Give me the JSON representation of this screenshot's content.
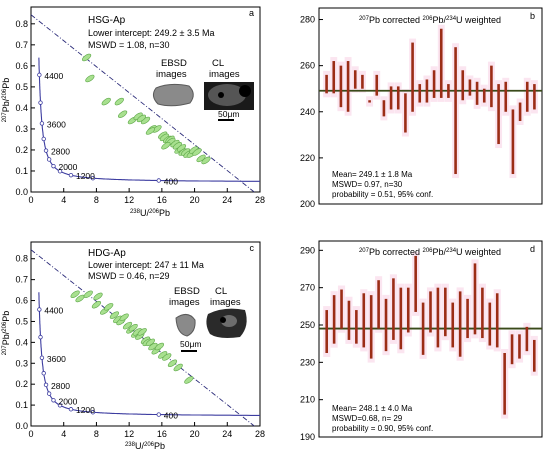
{
  "chart_data": [
    {
      "type": "scatter",
      "panel_label": "a",
      "title": "HSG-Ap",
      "annotations": [
        "Lower intercept: 249.2 ± 3.5 Ma",
        "MSWD = 1.08, n=30"
      ],
      "inset_labels": [
        "EBSD images",
        "CL images"
      ],
      "scale_bar": "50μm",
      "xlabel_mass": "238",
      "xlabel_num": "U/",
      "xlabel_mass2": "206",
      "xlabel_end": "Pb",
      "ylabel_mass": "207",
      "ylabel_mid": "Pb/",
      "ylabel_mass2": "206",
      "ylabel_end": "Pb",
      "xlim": [
        0,
        28
      ],
      "ylim": [
        0,
        0.88
      ],
      "xticks": [
        "0",
        "4",
        "8",
        "12",
        "16",
        "20",
        "24",
        "28"
      ],
      "yticks": [
        "0.0",
        "0.1",
        "0.2",
        "0.3",
        "0.4",
        "0.5",
        "0.6",
        "0.7",
        "0.8"
      ],
      "concordia_labels": [
        "4400",
        "3600",
        "2800",
        "2000",
        "1200",
        "400"
      ],
      "discordia": {
        "from": [
          0,
          0.843
        ],
        "to": [
          27.3,
          0.0
        ]
      },
      "points_x": [
        6.8,
        7.2,
        9.2,
        10.8,
        11.2,
        12.4,
        13.1,
        14.0,
        14.8,
        15.4,
        16.1,
        16.3,
        16.7,
        17.0,
        17.1,
        17.6,
        17.9,
        18.1,
        18.4,
        18.6,
        18.9,
        19.2,
        19.6,
        19.9,
        20.3,
        20.8,
        21.4,
        16.5,
        14.6,
        13.5
      ],
      "points_y": [
        0.64,
        0.54,
        0.43,
        0.43,
        0.37,
        0.34,
        0.36,
        0.34,
        0.3,
        0.3,
        0.27,
        0.26,
        0.25,
        0.25,
        0.24,
        0.23,
        0.22,
        0.2,
        0.21,
        0.19,
        0.19,
        0.18,
        0.18,
        0.2,
        0.19,
        0.16,
        0.15,
        0.22,
        0.29,
        0.35
      ]
    },
    {
      "type": "bar",
      "panel_label": "b",
      "title_mass1": "207",
      "title_a": "Pb corrected ",
      "title_mass2": "206",
      "title_b": "Pb/",
      "title_mass3": "234",
      "title_c": "U weighted",
      "ylim": [
        200,
        285
      ],
      "yticks": [
        "200",
        "220",
        "240",
        "260",
        "280"
      ],
      "mean_line": 249.1,
      "stats": [
        "Mean= 249.1 ± 1.8 Ma",
        "MSWD= 0.97, n=30",
        "probability = 0.51, 95% conf."
      ],
      "series_low": [
        248,
        248,
        242,
        240,
        250,
        250,
        244,
        247,
        238,
        241,
        241,
        231,
        240,
        244,
        244,
        246,
        246,
        246,
        213,
        245,
        247,
        243,
        244,
        242,
        226,
        240,
        213,
        236,
        240,
        241
      ],
      "series_high": [
        256,
        262,
        260,
        262,
        258,
        256,
        245,
        256,
        245,
        251,
        251,
        248,
        270,
        252,
        254,
        258,
        276,
        252,
        268,
        258,
        254,
        253,
        250,
        260,
        252,
        253,
        241,
        244,
        253,
        252
      ]
    },
    {
      "type": "scatter",
      "panel_label": "c",
      "title": "HDG-Ap",
      "annotations": [
        "Lower intercept: 247 ± 11 Ma",
        "MSWD = 0.46, n=29"
      ],
      "inset_labels": [
        "EBSD images",
        "CL images"
      ],
      "scale_bar": "50μm",
      "xlabel_mass": "238",
      "xlabel_num": "U/",
      "xlabel_mass2": "206",
      "xlabel_end": "Pb",
      "ylabel_mass": "207",
      "ylabel_mid": "Pb/",
      "ylabel_mass2": "206",
      "ylabel_end": "Pb",
      "xlim": [
        0,
        28
      ],
      "ylim": [
        0,
        0.88
      ],
      "xticks": [
        "0",
        "4",
        "8",
        "12",
        "16",
        "20",
        "24",
        "28"
      ],
      "yticks": [
        "0.0",
        "0.1",
        "0.2",
        "0.3",
        "0.4",
        "0.5",
        "0.6",
        "0.7",
        "0.8"
      ],
      "concordia_labels": [
        "4400",
        "3600",
        "2800",
        "2000",
        "1200",
        "400"
      ],
      "discordia": {
        "from": [
          0,
          0.843
        ],
        "to": [
          27.3,
          0.0
        ]
      },
      "points_x": [
        5.4,
        6.0,
        7.0,
        8.0,
        8.2,
        9.0,
        9.5,
        10.2,
        10.6,
        11.0,
        11.4,
        11.8,
        12.2,
        12.5,
        12.8,
        13.0,
        13.3,
        13.6,
        14.0,
        14.2,
        14.6,
        14.9,
        15.3,
        15.7,
        16.1,
        16.6,
        17.3,
        18.0,
        19.3
      ],
      "points_y": [
        0.63,
        0.61,
        0.63,
        0.58,
        0.62,
        0.55,
        0.57,
        0.53,
        0.51,
        0.5,
        0.52,
        0.48,
        0.46,
        0.47,
        0.44,
        0.45,
        0.43,
        0.45,
        0.41,
        0.4,
        0.4,
        0.38,
        0.36,
        0.38,
        0.34,
        0.33,
        0.3,
        0.28,
        0.22
      ]
    },
    {
      "type": "bar",
      "panel_label": "d",
      "title_mass1": "207",
      "title_a": "Pb corrected ",
      "title_mass2": "206",
      "title_b": "Pb/",
      "title_mass3": "234",
      "title_c": "U weighted",
      "ylim": [
        190,
        295
      ],
      "yticks": [
        "190",
        "210",
        "230",
        "250",
        "270",
        "290"
      ],
      "mean_line": 248.1,
      "stats": [
        "Mean= 248.1 ± 4.0 Ma",
        "MSWD=0.68, n= 29",
        "probability = 0.90, 95% conf."
      ],
      "series_low": [
        235,
        240,
        248,
        242,
        240,
        238,
        232,
        248,
        236,
        242,
        237,
        246,
        257,
        234,
        246,
        238,
        244,
        238,
        233,
        243,
        245,
        243,
        239,
        238,
        202,
        229,
        232,
        236,
        225
      ],
      "series_high": [
        258,
        266,
        269,
        263,
        258,
        267,
        266,
        274,
        264,
        275,
        270,
        270,
        287,
        262,
        268,
        270,
        270,
        262,
        268,
        264,
        283,
        270,
        262,
        267,
        235,
        245,
        245,
        249,
        242
      ]
    }
  ]
}
